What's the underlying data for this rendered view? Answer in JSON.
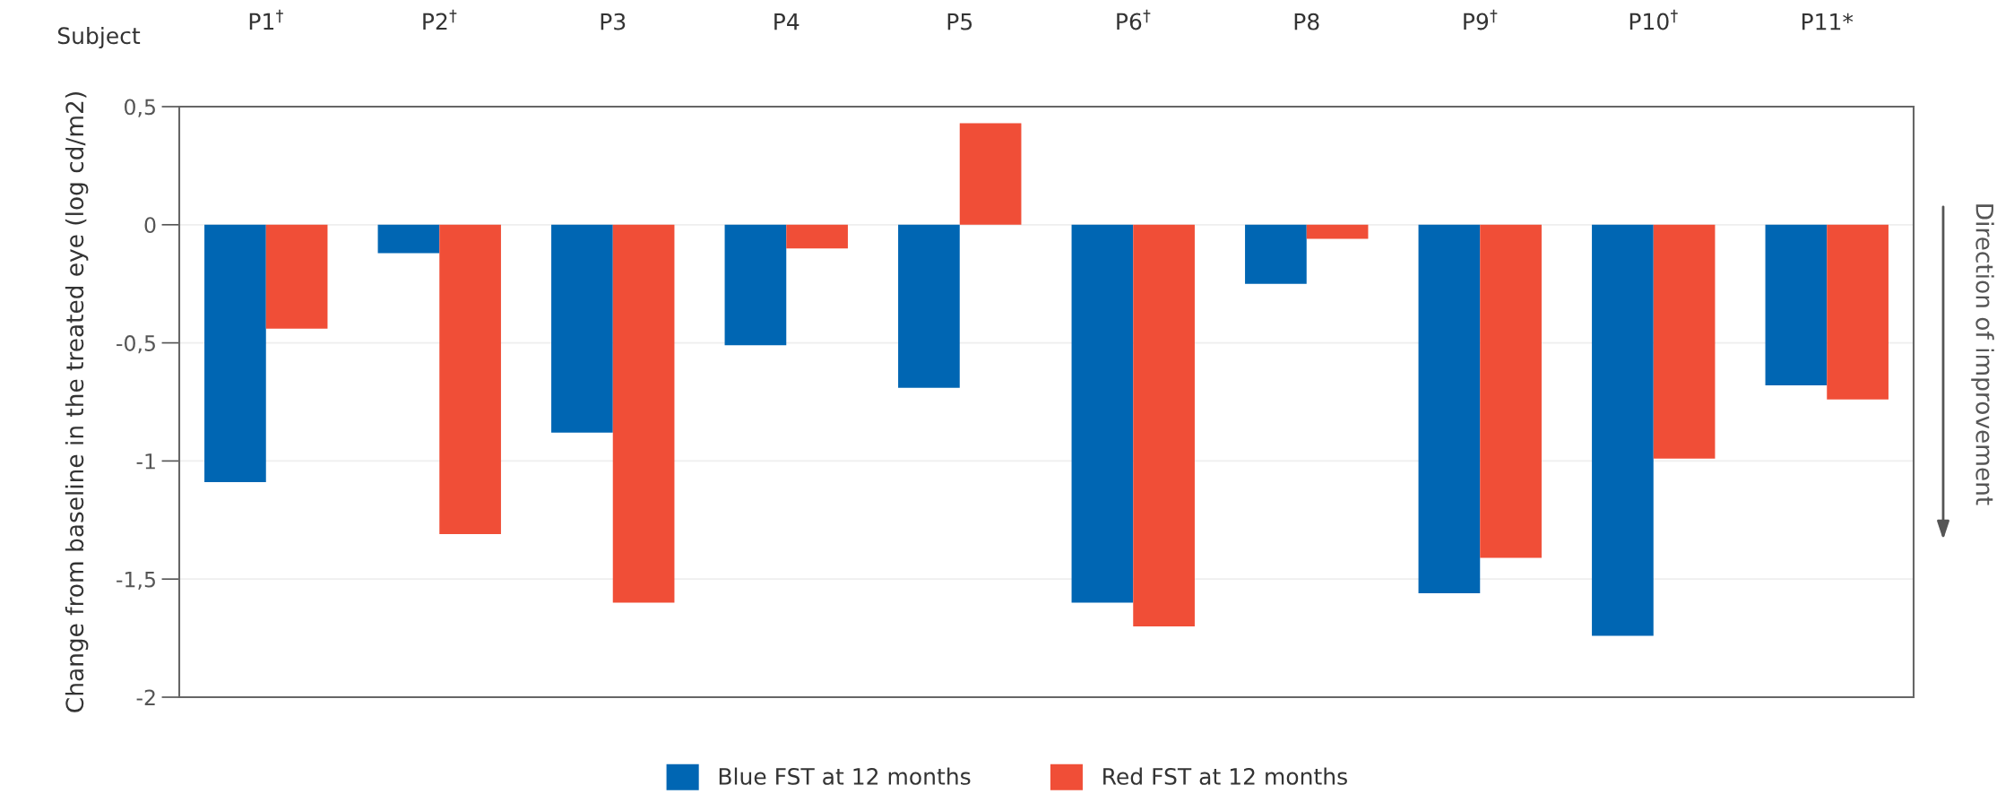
{
  "chart_data": {
    "type": "bar",
    "ylabel": "Change from baseline in the treated eye (log cd/m2)",
    "categories": [
      "P1$^{†}$",
      "P2$^{†}$",
      "P3",
      "P4",
      "P5",
      "P6$^{†}$",
      "P8",
      "P9$^{†}$",
      "P10$^{†}$",
      "P11*"
    ],
    "series": [
      {
        "name": "Blue FST at 12 months",
        "color": "#0066b3",
        "values": [
          -1.09,
          -0.12,
          -0.88,
          -0.51,
          -0.69,
          -1.6,
          -0.25,
          -1.56,
          -1.74,
          -0.68
        ]
      },
      {
        "name": "Red FST at 12 months",
        "color": "#f04e37",
        "values": [
          -0.44,
          -1.31,
          -1.6,
          -0.1,
          0.43,
          -1.7,
          -0.06,
          -1.41,
          -0.99,
          -0.74
        ]
      }
    ],
    "ylim": [
      -2,
      0.5
    ],
    "yticks": [
      {
        "value": 0.5,
        "label": "0,5"
      },
      0,
      {
        "value": -0.5,
        "label": "-0,5"
      },
      -1,
      {
        "value": -1.5,
        "label": "-1,5"
      },
      -2
    ],
    "grid": "y",
    "legend": "bottom",
    "annotations": [
      "Subject",
      "Direction of improvement"
    ]
  }
}
